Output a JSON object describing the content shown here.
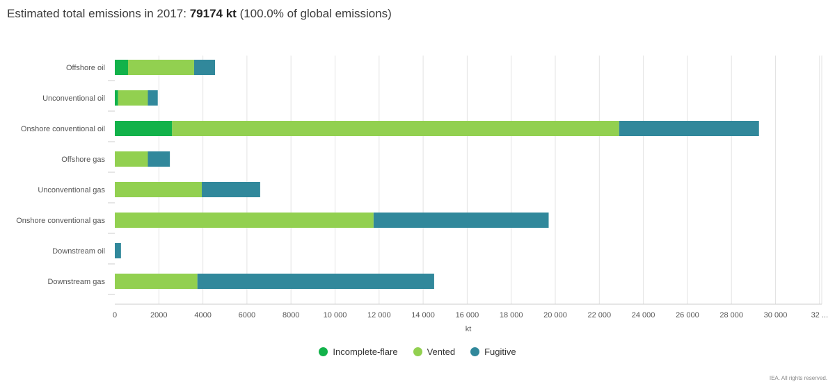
{
  "title": {
    "prefix": "Estimated total emissions in 2017:",
    "total": "79174 kt",
    "suffix": "(100.0% of global emissions)"
  },
  "credit": "IEA. All rights reserved.",
  "colors": {
    "incomplete_flare": "#12b24a",
    "vented": "#92d050",
    "fugitive": "#31889b",
    "grid": "#e3e3e3",
    "axis_text": "#555555"
  },
  "chart_data": {
    "type": "bar",
    "orientation": "horizontal",
    "stacked": true,
    "categories": [
      "Offshore oil",
      "Unconventional oil",
      "Onshore conventional oil",
      "Offshore gas",
      "Unconventional gas",
      "Onshore conventional gas",
      "Downstream oil",
      "Downstream gas"
    ],
    "series": [
      {
        "name": "Incomplete-flare",
        "color": "#12b24a",
        "values": [
          600,
          150,
          2600,
          0,
          0,
          0,
          0,
          0
        ]
      },
      {
        "name": "Vented",
        "color": "#92d050",
        "values": [
          3000,
          1350,
          20300,
          1500,
          3950,
          11750,
          0,
          3750
        ]
      },
      {
        "name": "Fugitive",
        "color": "#31889b",
        "values": [
          950,
          450,
          6350,
          1000,
          2650,
          7950,
          280,
          10750
        ]
      }
    ],
    "xlabel": "kt",
    "x_ticks": [
      "0",
      "2000",
      "4000",
      "6000",
      "8000",
      "10 000",
      "12 000",
      "14 000",
      "16 000",
      "18 000",
      "20 000",
      "22 000",
      "24 000",
      "26 000",
      "28 000",
      "30 000",
      "32 ..."
    ],
    "xlim": [
      0,
      32000
    ],
    "grid": true,
    "legend": "bottom-center"
  }
}
